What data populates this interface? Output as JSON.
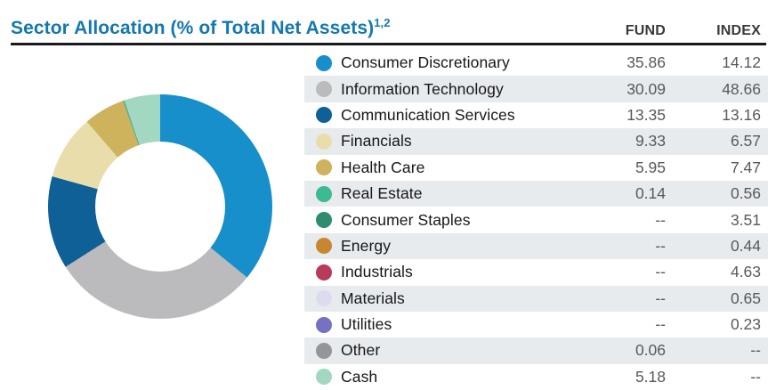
{
  "header": {
    "title": "Sector Allocation (% of Total Net Assets)",
    "superscript": "1,2",
    "fund_label": "FUND",
    "index_label": "INDEX"
  },
  "colors": {
    "title_text": "#1478ad",
    "header_rule": "#1a1a1a",
    "column_header_text": "#3a3a3c",
    "row_alt_background": "#e7ebee",
    "sector_label_text": "#161618",
    "value_text": "#58595b"
  },
  "table": {
    "rows": [
      {
        "label": "Consumer Discretionary",
        "fund": "35.86",
        "index": "14.12",
        "color": "#168fcb"
      },
      {
        "label": "Information Technology",
        "fund": "30.09",
        "index": "48.66",
        "color": "#bbbbbd"
      },
      {
        "label": "Communication Services",
        "fund": "13.35",
        "index": "13.16",
        "color": "#0e6097"
      },
      {
        "label": "Financials",
        "fund": "9.33",
        "index": "6.57",
        "color": "#e9ddab"
      },
      {
        "label": "Health Care",
        "fund": "5.95",
        "index": "7.47",
        "color": "#cfb25c"
      },
      {
        "label": "Real Estate",
        "fund": "0.14",
        "index": "0.56",
        "color": "#3cba92"
      },
      {
        "label": "Consumer Staples",
        "fund": "--",
        "index": "3.51",
        "color": "#2f8c6f"
      },
      {
        "label": "Energy",
        "fund": "--",
        "index": "0.44",
        "color": "#c8872e"
      },
      {
        "label": "Industrials",
        "fund": "--",
        "index": "4.63",
        "color": "#ba3a5b"
      },
      {
        "label": "Materials",
        "fund": "--",
        "index": "0.65",
        "color": "#dcdcee"
      },
      {
        "label": "Utilities",
        "fund": "--",
        "index": "0.23",
        "color": "#7472c1"
      },
      {
        "label": "Other",
        "fund": "0.06",
        "index": "--",
        "color": "#939598"
      },
      {
        "label": "Cash",
        "fund": "5.18",
        "index": "--",
        "color": "#a2d8c2"
      }
    ]
  },
  "chart_data": {
    "type": "pie",
    "subtype": "donut",
    "title": "Sector Allocation (% of Total Net Assets)",
    "legend_position": "right",
    "donut_rendered_series": "FUND",
    "donut_start_angle_deg": 0,
    "donut_direction": "clockwise",
    "categories": [
      "Consumer Discretionary",
      "Information Technology",
      "Communication Services",
      "Financials",
      "Health Care",
      "Real Estate",
      "Consumer Staples",
      "Energy",
      "Industrials",
      "Materials",
      "Utilities",
      "Other",
      "Cash"
    ],
    "series": [
      {
        "name": "FUND",
        "values": [
          35.86,
          30.09,
          13.35,
          9.33,
          5.95,
          0.14,
          null,
          null,
          null,
          null,
          null,
          0.06,
          5.18
        ]
      },
      {
        "name": "INDEX",
        "values": [
          14.12,
          48.66,
          13.16,
          6.57,
          7.47,
          0.56,
          3.51,
          0.44,
          4.63,
          0.65,
          0.23,
          null,
          null
        ]
      }
    ],
    "colors": [
      "#168fcb",
      "#bbbbbd",
      "#0e6097",
      "#e9ddab",
      "#cfb25c",
      "#3cba92",
      "#2f8c6f",
      "#c8872e",
      "#ba3a5b",
      "#dcdcee",
      "#7472c1",
      "#939598",
      "#a2d8c2"
    ]
  }
}
